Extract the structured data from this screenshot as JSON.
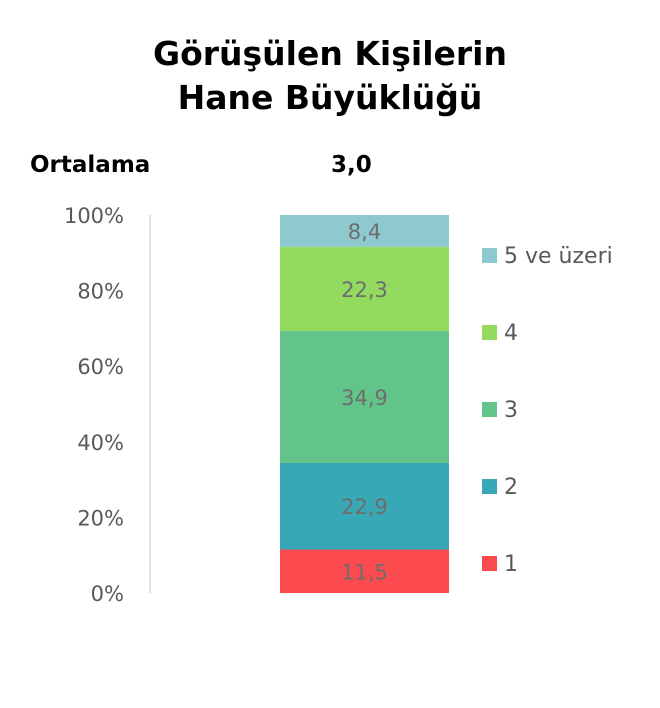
{
  "chart_data": {
    "type": "bar",
    "stacked": true,
    "title_lines": [
      "Görüşülen Kişilerin",
      "Hane Büyüklüğü"
    ],
    "summary": {
      "label": "Ortalama",
      "value": "3,0"
    },
    "ylim": [
      0,
      100
    ],
    "yticks": [
      "0%",
      "20%",
      "40%",
      "60%",
      "80%",
      "100%"
    ],
    "series": [
      {
        "name": "1",
        "value": 11.5,
        "label": "11,5",
        "color": "#fb4b4e"
      },
      {
        "name": "2",
        "value": 22.9,
        "label": "22,9",
        "color": "#38a8b6"
      },
      {
        "name": "3",
        "value": 34.9,
        "label": "34,9",
        "color": "#62c489"
      },
      {
        "name": "4",
        "value": 22.3,
        "label": "22,3",
        "color": "#93da5f"
      },
      {
        "name": "5 ve üzeri",
        "value": 8.4,
        "label": "8,4",
        "color": "#8fc9d0"
      }
    ],
    "legend_position": "right",
    "grid": false
  }
}
